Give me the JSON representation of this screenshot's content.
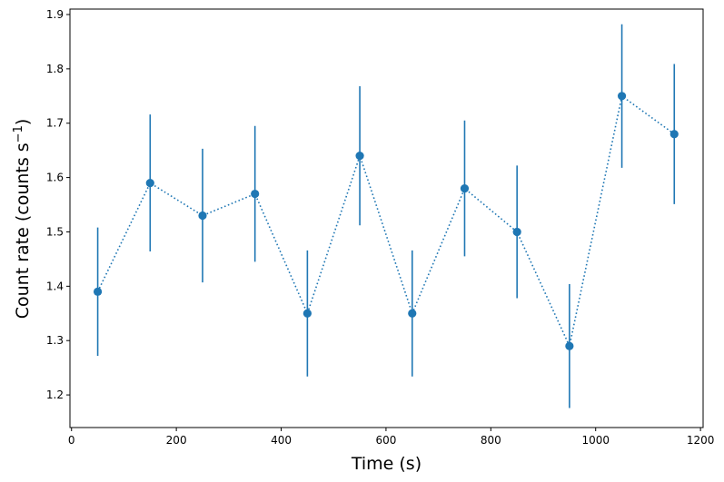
{
  "chart_data": {
    "type": "scatter",
    "xlabel": "Time (s)",
    "ylabel_main": "Count rate (counts s",
    "ylabel_sup": "−1",
    "ylabel_close": ")",
    "xlim": [
      -3,
      1205
    ],
    "ylim": [
      1.14,
      1.91
    ],
    "x_ticks": [
      0,
      200,
      400,
      600,
      800,
      1000,
      1200
    ],
    "y_ticks": [
      1.2,
      1.3,
      1.4,
      1.5,
      1.6,
      1.7,
      1.8,
      1.9
    ],
    "grid": false,
    "line_style": "dotted",
    "color": "#1f77b4",
    "points": [
      {
        "x": 50,
        "y": 1.39,
        "err": 0.118
      },
      {
        "x": 150,
        "y": 1.59,
        "err": 0.126
      },
      {
        "x": 250,
        "y": 1.53,
        "err": 0.123
      },
      {
        "x": 350,
        "y": 1.57,
        "err": 0.125
      },
      {
        "x": 450,
        "y": 1.35,
        "err": 0.116
      },
      {
        "x": 550,
        "y": 1.64,
        "err": 0.128
      },
      {
        "x": 650,
        "y": 1.35,
        "err": 0.116
      },
      {
        "x": 750,
        "y": 1.58,
        "err": 0.125
      },
      {
        "x": 850,
        "y": 1.5,
        "err": 0.122
      },
      {
        "x": 950,
        "y": 1.29,
        "err": 0.114
      },
      {
        "x": 1050,
        "y": 1.75,
        "err": 0.132
      },
      {
        "x": 1150,
        "y": 1.68,
        "err": 0.129
      }
    ]
  }
}
